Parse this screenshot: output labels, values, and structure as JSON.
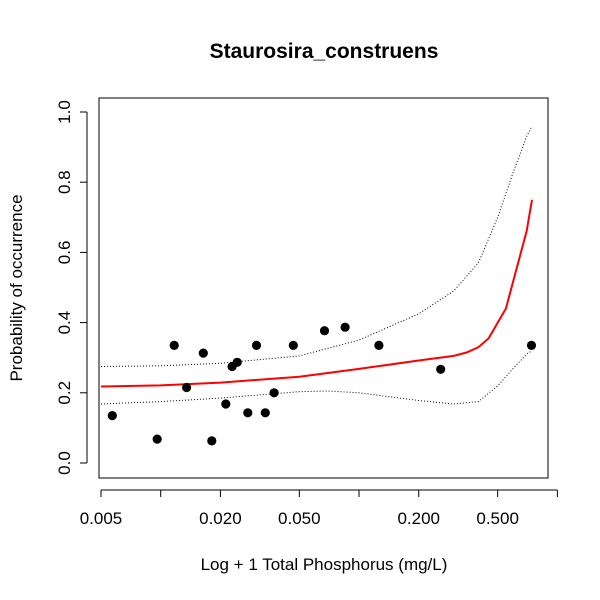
{
  "chart_data": {
    "type": "scatter",
    "title": "Staurosira_construens",
    "xlabel": "Log + 1 Total Phosphorus (mg/L)",
    "ylabel": "Probability of occurrence",
    "x_scale": "log",
    "xlim": [
      0.005,
      0.82
    ],
    "ylim": [
      0.0,
      1.0
    ],
    "x_ticks": [
      {
        "value": 0.005,
        "label": "0.005"
      },
      {
        "value": 0.02,
        "label": "0.020"
      },
      {
        "value": 0.05,
        "label": "0.050"
      },
      {
        "value": 0.2,
        "label": "0.200"
      },
      {
        "value": 0.5,
        "label": "0.500"
      }
    ],
    "x_minor_ticks": [
      0.01,
      0.1,
      1.0
    ],
    "y_ticks": [
      {
        "value": 0.0,
        "label": "0.0"
      },
      {
        "value": 0.2,
        "label": "0.2"
      },
      {
        "value": 0.4,
        "label": "0.4"
      },
      {
        "value": 0.6,
        "label": "0.6"
      },
      {
        "value": 0.8,
        "label": "0.8"
      },
      {
        "value": 1.0,
        "label": "1.0"
      }
    ],
    "grid": false,
    "legend": "none",
    "points": [
      {
        "x": 0.0057,
        "y": 0.135
      },
      {
        "x": 0.0096,
        "y": 0.068
      },
      {
        "x": 0.0117,
        "y": 0.335
      },
      {
        "x": 0.0135,
        "y": 0.215
      },
      {
        "x": 0.0164,
        "y": 0.313
      },
      {
        "x": 0.0181,
        "y": 0.063
      },
      {
        "x": 0.0213,
        "y": 0.168
      },
      {
        "x": 0.0229,
        "y": 0.275
      },
      {
        "x": 0.0243,
        "y": 0.287
      },
      {
        "x": 0.0275,
        "y": 0.143
      },
      {
        "x": 0.0304,
        "y": 0.335
      },
      {
        "x": 0.0337,
        "y": 0.143
      },
      {
        "x": 0.0373,
        "y": 0.2
      },
      {
        "x": 0.0466,
        "y": 0.335
      },
      {
        "x": 0.067,
        "y": 0.377
      },
      {
        "x": 0.0851,
        "y": 0.387
      },
      {
        "x": 0.126,
        "y": 0.335
      },
      {
        "x": 0.258,
        "y": 0.267
      },
      {
        "x": 0.741,
        "y": 0.335
      }
    ],
    "fit_line": {
      "color": "#ff0000",
      "x": [
        0.005,
        0.01,
        0.02,
        0.05,
        0.1,
        0.2,
        0.3,
        0.35,
        0.4,
        0.45,
        0.5,
        0.55,
        0.6,
        0.7,
        0.745
      ],
      "y": [
        0.218,
        0.221,
        0.229,
        0.246,
        0.268,
        0.292,
        0.305,
        0.315,
        0.33,
        0.355,
        0.4,
        0.44,
        0.52,
        0.66,
        0.75
      ]
    },
    "upper_ci": {
      "color": "#000000",
      "x": [
        0.005,
        0.01,
        0.02,
        0.05,
        0.1,
        0.2,
        0.3,
        0.4,
        0.5,
        0.6,
        0.7,
        0.745
      ],
      "y": [
        0.275,
        0.277,
        0.284,
        0.305,
        0.35,
        0.425,
        0.49,
        0.57,
        0.7,
        0.83,
        0.93,
        0.96
      ]
    },
    "lower_ci": {
      "color": "#000000",
      "x": [
        0.005,
        0.01,
        0.02,
        0.05,
        0.07,
        0.1,
        0.2,
        0.3,
        0.4,
        0.5,
        0.6,
        0.7,
        0.745
      ],
      "y": [
        0.168,
        0.175,
        0.185,
        0.203,
        0.205,
        0.2,
        0.178,
        0.168,
        0.175,
        0.22,
        0.27,
        0.31,
        0.32
      ]
    }
  }
}
